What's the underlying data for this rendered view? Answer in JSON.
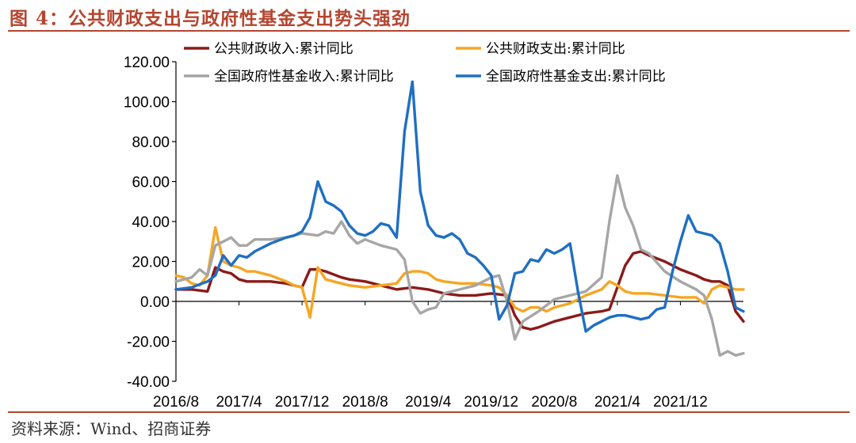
{
  "figure": {
    "title": "图 4：公共财政支出与政府性基金支出势头强劲",
    "source": "资料来源：Wind、招商证券"
  },
  "chart_data": {
    "type": "line",
    "ylim": [
      -40,
      120
    ],
    "yticks": [
      "120.00",
      "100.00",
      "80.00",
      "60.00",
      "40.00",
      "20.00",
      "0.00",
      "-20.00",
      "-40.00"
    ],
    "xticks": [
      "2016/8",
      "2017/4",
      "2017/12",
      "2018/8",
      "2019/4",
      "2019/12",
      "2020/8",
      "2021/4",
      "2021/12"
    ],
    "grid": false,
    "legend_position": "top",
    "series": [
      {
        "name": "公共财政收入:累计同比",
        "color": "#8b1a1a",
        "points": [
          [
            0,
            6
          ],
          [
            2,
            6
          ],
          [
            4,
            5
          ],
          [
            5,
            17
          ],
          [
            6,
            15
          ],
          [
            7,
            14
          ],
          [
            8,
            11
          ],
          [
            9,
            10
          ],
          [
            10,
            10
          ],
          [
            12,
            10
          ],
          [
            14,
            9
          ],
          [
            15,
            8
          ],
          [
            16,
            7
          ],
          [
            17,
            16
          ],
          [
            18,
            16
          ],
          [
            19,
            15
          ],
          [
            21,
            12
          ],
          [
            22,
            11
          ],
          [
            24,
            10
          ],
          [
            26,
            8
          ],
          [
            28,
            6
          ],
          [
            30,
            7
          ],
          [
            32,
            6
          ],
          [
            34,
            4
          ],
          [
            36,
            3
          ],
          [
            38,
            3
          ],
          [
            40,
            4
          ],
          [
            42,
            3
          ],
          [
            43,
            -7
          ],
          [
            44,
            -13
          ],
          [
            45,
            -14
          ],
          [
            46,
            -13
          ],
          [
            48,
            -10
          ],
          [
            50,
            -8
          ],
          [
            52,
            -6
          ],
          [
            54,
            -5
          ],
          [
            55,
            -4
          ],
          [
            56,
            7
          ],
          [
            57,
            18
          ],
          [
            58,
            24
          ],
          [
            59,
            25
          ],
          [
            60,
            23
          ],
          [
            62,
            20
          ],
          [
            64,
            16
          ],
          [
            66,
            13
          ],
          [
            67,
            11
          ],
          [
            68,
            10
          ],
          [
            69,
            10
          ],
          [
            70,
            8
          ],
          [
            71,
            -5
          ],
          [
            72,
            -10
          ]
        ]
      },
      {
        "name": "公共财政支出:累计同比",
        "color": "#f5a623",
        "points": [
          [
            0,
            13
          ],
          [
            1,
            12
          ],
          [
            2,
            9
          ],
          [
            3,
            8
          ],
          [
            4,
            13
          ],
          [
            5,
            37
          ],
          [
            6,
            20
          ],
          [
            7,
            18
          ],
          [
            8,
            17
          ],
          [
            9,
            15
          ],
          [
            10,
            15
          ],
          [
            12,
            13
          ],
          [
            14,
            10
          ],
          [
            15,
            8
          ],
          [
            16,
            7
          ],
          [
            17,
            -8
          ],
          [
            18,
            17
          ],
          [
            19,
            11
          ],
          [
            20,
            10
          ],
          [
            22,
            8
          ],
          [
            24,
            7
          ],
          [
            26,
            8
          ],
          [
            28,
            9
          ],
          [
            29,
            14
          ],
          [
            30,
            15
          ],
          [
            31,
            15
          ],
          [
            32,
            14
          ],
          [
            33,
            11
          ],
          [
            34,
            10
          ],
          [
            36,
            9
          ],
          [
            38,
            9
          ],
          [
            40,
            8
          ],
          [
            41,
            7
          ],
          [
            42,
            3
          ],
          [
            43,
            -3
          ],
          [
            44,
            -5
          ],
          [
            45,
            -3
          ],
          [
            46,
            -3
          ],
          [
            47,
            -5
          ],
          [
            48,
            -3
          ],
          [
            50,
            -1
          ],
          [
            52,
            3
          ],
          [
            54,
            6
          ],
          [
            55,
            10
          ],
          [
            56,
            8
          ],
          [
            57,
            5
          ],
          [
            58,
            4
          ],
          [
            60,
            4
          ],
          [
            62,
            3
          ],
          [
            64,
            2
          ],
          [
            66,
            2
          ],
          [
            67,
            -1
          ],
          [
            68,
            6
          ],
          [
            69,
            8
          ],
          [
            70,
            7
          ],
          [
            71,
            6
          ],
          [
            72,
            6
          ]
        ]
      },
      {
        "name": "全国政府性基金收入:累计同比",
        "color": "#a6a6a6",
        "points": [
          [
            0,
            10
          ],
          [
            1,
            11
          ],
          [
            2,
            12
          ],
          [
            3,
            16
          ],
          [
            4,
            13
          ],
          [
            5,
            28
          ],
          [
            6,
            30
          ],
          [
            7,
            32
          ],
          [
            8,
            28
          ],
          [
            9,
            28
          ],
          [
            10,
            31
          ],
          [
            12,
            31
          ],
          [
            14,
            32
          ],
          [
            16,
            34
          ],
          [
            18,
            33
          ],
          [
            19,
            35
          ],
          [
            20,
            34
          ],
          [
            21,
            40
          ],
          [
            22,
            33
          ],
          [
            23,
            29
          ],
          [
            24,
            31
          ],
          [
            26,
            28
          ],
          [
            28,
            26
          ],
          [
            29,
            21
          ],
          [
            30,
            0
          ],
          [
            31,
            -6
          ],
          [
            32,
            -4
          ],
          [
            33,
            -3
          ],
          [
            34,
            4
          ],
          [
            36,
            6
          ],
          [
            38,
            8
          ],
          [
            40,
            12
          ],
          [
            41,
            13
          ],
          [
            42,
            0
          ],
          [
            43,
            -19
          ],
          [
            44,
            -10
          ],
          [
            46,
            -5
          ],
          [
            48,
            1
          ],
          [
            50,
            3
          ],
          [
            52,
            5
          ],
          [
            54,
            12
          ],
          [
            55,
            40
          ],
          [
            56,
            63
          ],
          [
            57,
            47
          ],
          [
            58,
            38
          ],
          [
            59,
            26
          ],
          [
            60,
            24
          ],
          [
            62,
            15
          ],
          [
            64,
            10
          ],
          [
            66,
            6
          ],
          [
            67,
            3
          ],
          [
            68,
            -9
          ],
          [
            69,
            -27
          ],
          [
            70,
            -25
          ],
          [
            71,
            -27
          ],
          [
            72,
            -26
          ]
        ]
      },
      {
        "name": "全国政府性基金支出:累计同比",
        "color": "#1f6fc2",
        "points": [
          [
            0,
            6
          ],
          [
            2,
            7
          ],
          [
            4,
            10
          ],
          [
            5,
            13
          ],
          [
            6,
            23
          ],
          [
            7,
            18
          ],
          [
            8,
            23
          ],
          [
            9,
            22
          ],
          [
            10,
            25
          ],
          [
            12,
            29
          ],
          [
            14,
            32
          ],
          [
            15,
            33
          ],
          [
            16,
            35
          ],
          [
            17,
            42
          ],
          [
            18,
            60
          ],
          [
            19,
            50
          ],
          [
            20,
            48
          ],
          [
            21,
            45
          ],
          [
            22,
            38
          ],
          [
            23,
            34
          ],
          [
            24,
            33
          ],
          [
            25,
            35
          ],
          [
            26,
            39
          ],
          [
            27,
            38
          ],
          [
            28,
            32
          ],
          [
            29,
            85
          ],
          [
            30,
            110
          ],
          [
            31,
            55
          ],
          [
            32,
            38
          ],
          [
            33,
            33
          ],
          [
            34,
            32
          ],
          [
            35,
            34
          ],
          [
            36,
            31
          ],
          [
            37,
            24
          ],
          [
            38,
            22
          ],
          [
            39,
            18
          ],
          [
            40,
            13
          ],
          [
            41,
            -9
          ],
          [
            42,
            -2
          ],
          [
            43,
            14
          ],
          [
            44,
            15
          ],
          [
            45,
            21
          ],
          [
            46,
            20
          ],
          [
            47,
            26
          ],
          [
            48,
            24
          ],
          [
            49,
            26
          ],
          [
            50,
            29
          ],
          [
            51,
            5
          ],
          [
            52,
            -15
          ],
          [
            53,
            -12
          ],
          [
            54,
            -10
          ],
          [
            55,
            -8
          ],
          [
            56,
            -7
          ],
          [
            57,
            -7
          ],
          [
            58,
            -8
          ],
          [
            59,
            -9
          ],
          [
            60,
            -8
          ],
          [
            61,
            -4
          ],
          [
            62,
            -3
          ],
          [
            63,
            15
          ],
          [
            64,
            30
          ],
          [
            65,
            43
          ],
          [
            66,
            35
          ],
          [
            67,
            34
          ],
          [
            68,
            33
          ],
          [
            69,
            29
          ],
          [
            70,
            15
          ],
          [
            71,
            -3
          ],
          [
            72,
            -5
          ]
        ]
      }
    ]
  }
}
